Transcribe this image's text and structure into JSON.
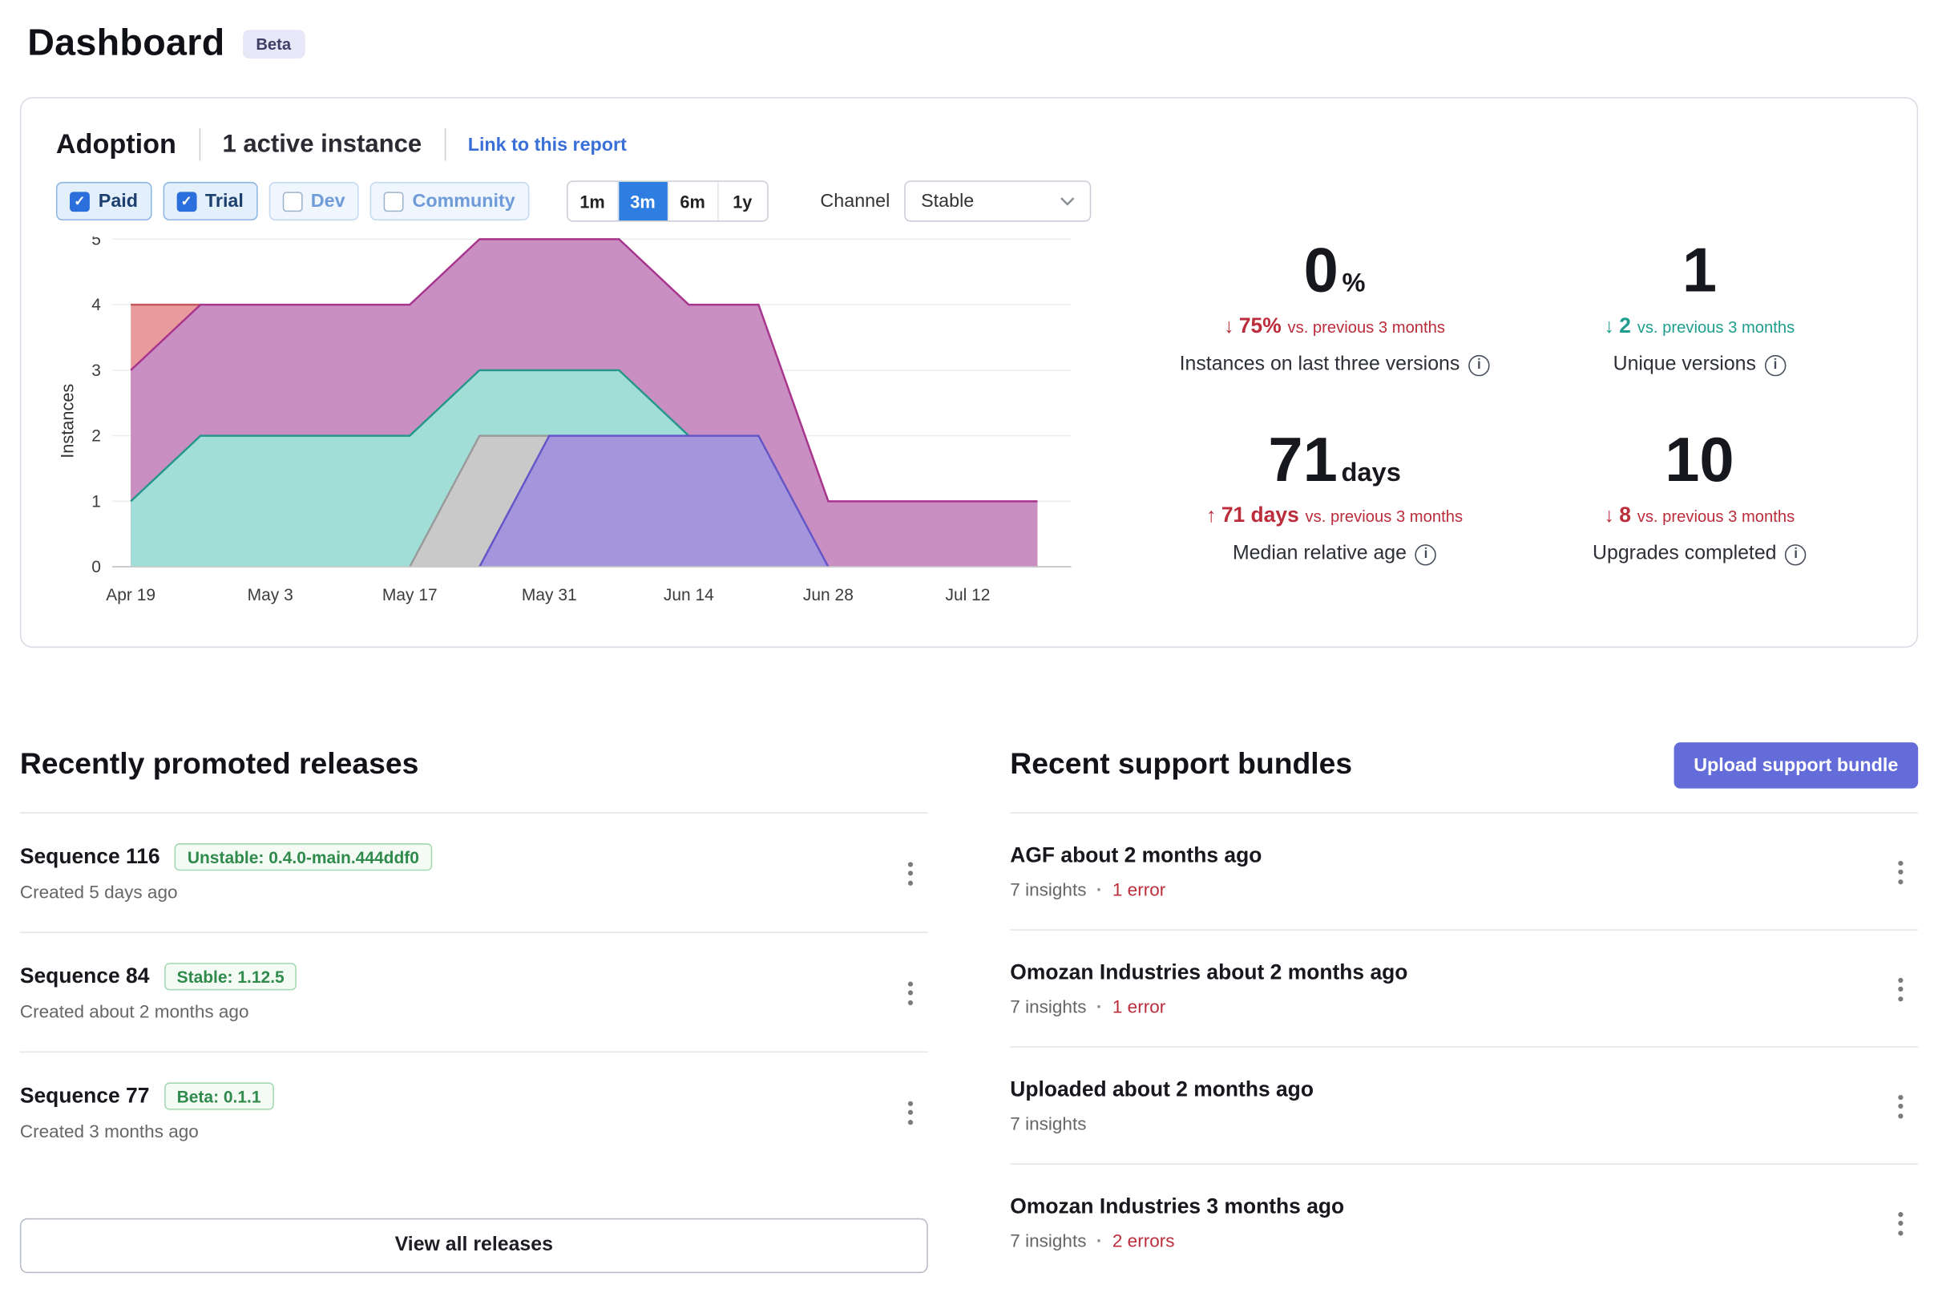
{
  "page": {
    "title": "Dashboard",
    "beta_badge": "Beta"
  },
  "adoption": {
    "title": "Adoption",
    "active_instances": "1 active instance",
    "report_link": "Link to this report",
    "filters": [
      {
        "label": "Paid",
        "checked": true
      },
      {
        "label": "Trial",
        "checked": true
      },
      {
        "label": "Dev",
        "checked": false
      },
      {
        "label": "Community",
        "checked": false
      }
    ],
    "ranges": [
      {
        "label": "1m",
        "active": false
      },
      {
        "label": "3m",
        "active": true
      },
      {
        "label": "6m",
        "active": false
      },
      {
        "label": "1y",
        "active": false
      }
    ],
    "channel_label": "Channel",
    "channel_value": "Stable",
    "stats": [
      {
        "value": "0",
        "unit": "%",
        "direction": "down",
        "color": "#bb2d3b",
        "delta": "75%",
        "suffix": "vs. previous 3 months",
        "label": "Instances on last three versions"
      },
      {
        "value": "1",
        "unit": "",
        "direction": "down",
        "color": "#1f9e8e",
        "delta": "2",
        "suffix": "vs. previous 3 months",
        "label": "Unique versions"
      },
      {
        "value": "71",
        "unit": "days",
        "direction": "up",
        "color": "#bb2d3b",
        "delta": "71 days",
        "suffix": "vs. previous 3 months",
        "label": "Median relative age"
      },
      {
        "value": "10",
        "unit": "",
        "direction": "down",
        "color": "#bb2d3b",
        "delta": "8",
        "suffix": "vs. previous 3 months",
        "label": "Upgrades completed"
      }
    ]
  },
  "chart_data": {
    "type": "area",
    "ylabel": "Instances",
    "ylim": [
      0,
      5
    ],
    "yticks": [
      0,
      1,
      2,
      3,
      4,
      5
    ],
    "grid": true,
    "legend": "none",
    "x": [
      "Apr 19",
      "Apr 26",
      "May 3",
      "May 10",
      "May 17",
      "May 24",
      "May 31",
      "Jun 7",
      "Jun 14",
      "Jun 21",
      "Jun 28",
      "Jul 5",
      "Jul 12",
      "Jul 19"
    ],
    "xticks": [
      "Apr 19",
      "May 3",
      "May 17",
      "May 31",
      "Jun 14",
      "Jun 28",
      "Jul 12"
    ],
    "series": [
      {
        "name": "series-red",
        "fill": "#e89a9c",
        "stroke": "#c4575c",
        "values": [
          4,
          4,
          null,
          null,
          null,
          null,
          null,
          null,
          null,
          null,
          null,
          null,
          null,
          null
        ]
      },
      {
        "name": "series-magenta",
        "fill": "#ca8fc2",
        "stroke": "#a8358d",
        "values": [
          3,
          4,
          4,
          4,
          4,
          5,
          5,
          5,
          4,
          4,
          1,
          1,
          1,
          1
        ]
      },
      {
        "name": "series-teal",
        "fill": "#a2ded8",
        "stroke": "#27968b",
        "values": [
          1,
          2,
          2,
          2,
          2,
          3,
          3,
          3,
          2,
          null,
          null,
          null,
          null,
          null
        ]
      },
      {
        "name": "series-gray",
        "fill": "#c9c9c9",
        "stroke": "#9a9a9a",
        "values": [
          null,
          null,
          null,
          null,
          0,
          2,
          2,
          null,
          null,
          null,
          null,
          null,
          null,
          null
        ]
      },
      {
        "name": "series-purple",
        "fill": "#a495dd",
        "stroke": "#6356c7",
        "values": [
          null,
          null,
          null,
          null,
          null,
          0,
          2,
          2,
          2,
          2,
          0,
          null,
          null,
          null
        ]
      }
    ]
  },
  "releases": {
    "heading": "Recently promoted releases",
    "view_all_label": "View all releases",
    "items": [
      {
        "title": "Sequence 116",
        "badge": "Unstable: 0.4.0-main.444ddf0",
        "created": "Created 5 days ago"
      },
      {
        "title": "Sequence 84",
        "badge": "Stable: 1.12.5",
        "created": "Created about 2 months ago"
      },
      {
        "title": "Sequence 77",
        "badge": "Beta: 0.1.1",
        "created": "Created 3 months ago"
      }
    ]
  },
  "bundles": {
    "heading": "Recent support bundles",
    "upload_label": "Upload support bundle",
    "items": [
      {
        "title": "AGF about 2 months ago",
        "insights": "7 insights",
        "errors": "1 error"
      },
      {
        "title": "Omozan Industries about 2 months ago",
        "insights": "7 insights",
        "errors": "1 error"
      },
      {
        "title": "Uploaded about 2 months ago",
        "insights": "7 insights",
        "errors": null
      },
      {
        "title": "Omozan Industries 3 months ago",
        "insights": "7 insights",
        "errors": "2 errors"
      }
    ]
  }
}
